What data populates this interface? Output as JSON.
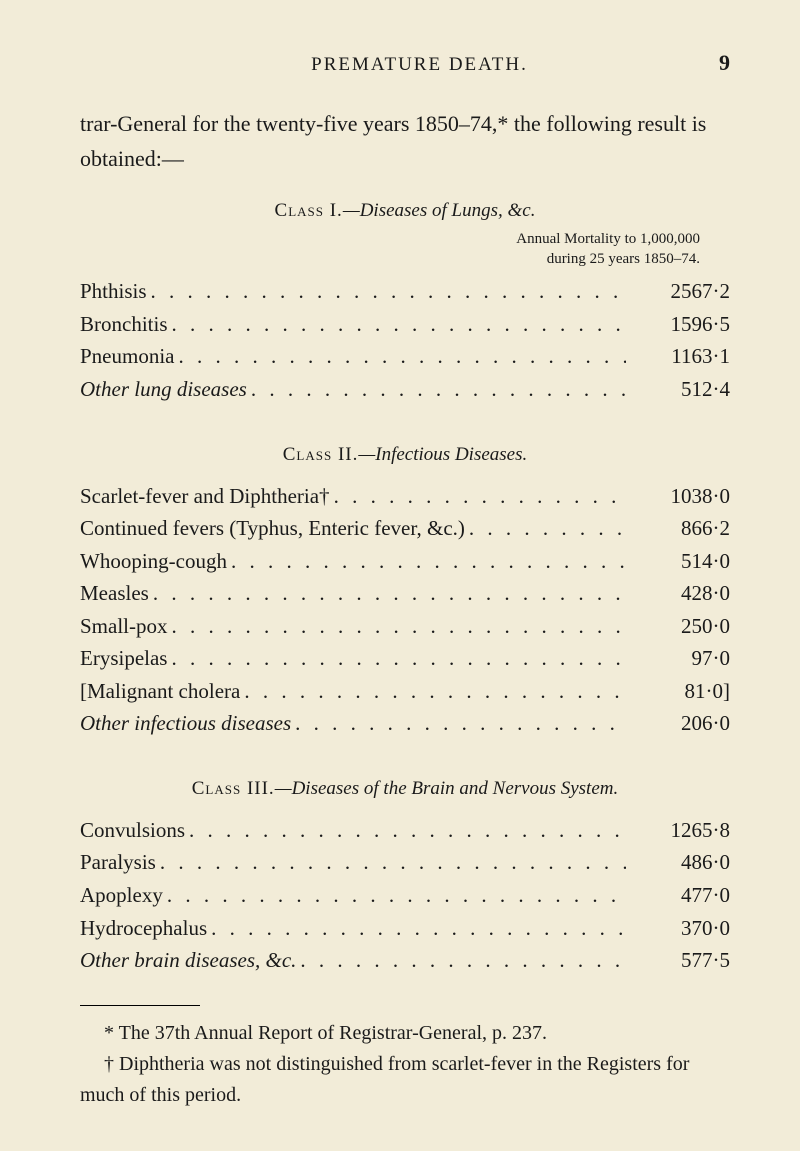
{
  "header": {
    "running_head": "PREMATURE DEATH.",
    "page_number": "9"
  },
  "intro": "trar-General for the twenty-five years 1850–74,* the following result is obtained:—",
  "class1": {
    "heading_sc": "Class I.",
    "heading_it": "—Diseases of Lungs, &c.",
    "annual_line1": "Annual Mortality to 1,000,000",
    "annual_line2": "during 25 years 1850–74.",
    "rows": [
      {
        "label": "Phthisis",
        "value": "2567·2",
        "italic": false
      },
      {
        "label": "Bronchitis",
        "value": "1596·5",
        "italic": false
      },
      {
        "label": "Pneumonia",
        "value": "1163·1",
        "italic": false
      },
      {
        "label": "Other lung diseases",
        "value": "512·4",
        "italic": true
      }
    ]
  },
  "class2": {
    "heading_sc": "Class II.",
    "heading_it": "—Infectious Diseases.",
    "rows": [
      {
        "label": "Scarlet-fever and Diphtheria†",
        "value": "1038·0",
        "italic": false
      },
      {
        "label": "Continued fevers (Typhus, Enteric fever, &c.)",
        "value": "866·2",
        "italic": false
      },
      {
        "label": "Whooping-cough",
        "value": "514·0",
        "italic": false
      },
      {
        "label": "Measles",
        "value": "428·0",
        "italic": false
      },
      {
        "label": "Small-pox",
        "value": "250·0",
        "italic": false
      },
      {
        "label": "Erysipelas",
        "value": "97·0",
        "italic": false
      },
      {
        "label": "[Malignant cholera",
        "value": "81·0]",
        "italic": false
      },
      {
        "label": "Other infectious diseases",
        "value": "206·0",
        "italic": true
      }
    ]
  },
  "class3": {
    "heading_sc": "Class III.",
    "heading_it": "—Diseases of the Brain and Nervous System.",
    "rows": [
      {
        "label": "Convulsions",
        "value": "1265·8",
        "italic": false
      },
      {
        "label": "Paralysis",
        "value": "486·0",
        "italic": false
      },
      {
        "label": "Apoplexy",
        "value": "477·0",
        "italic": false
      },
      {
        "label": "Hydrocephalus",
        "value": "370·0",
        "italic": false
      },
      {
        "label": "Other brain diseases, &c.",
        "value": "577·5",
        "italic": true
      }
    ]
  },
  "footnotes": {
    "fn1": "* The 37th Annual Report of Registrar-General, p. 237.",
    "fn2": "† Diphtheria was not distinguished from scarlet-fever in the Registers for much of this period."
  },
  "style": {
    "background_color": "#f2ecd8",
    "text_color": "#1a1a1a",
    "body_fontsize": 21,
    "heading_fontsize": 19,
    "note_fontsize": 15,
    "intro_fontsize": 22,
    "font_family": "Times New Roman"
  }
}
